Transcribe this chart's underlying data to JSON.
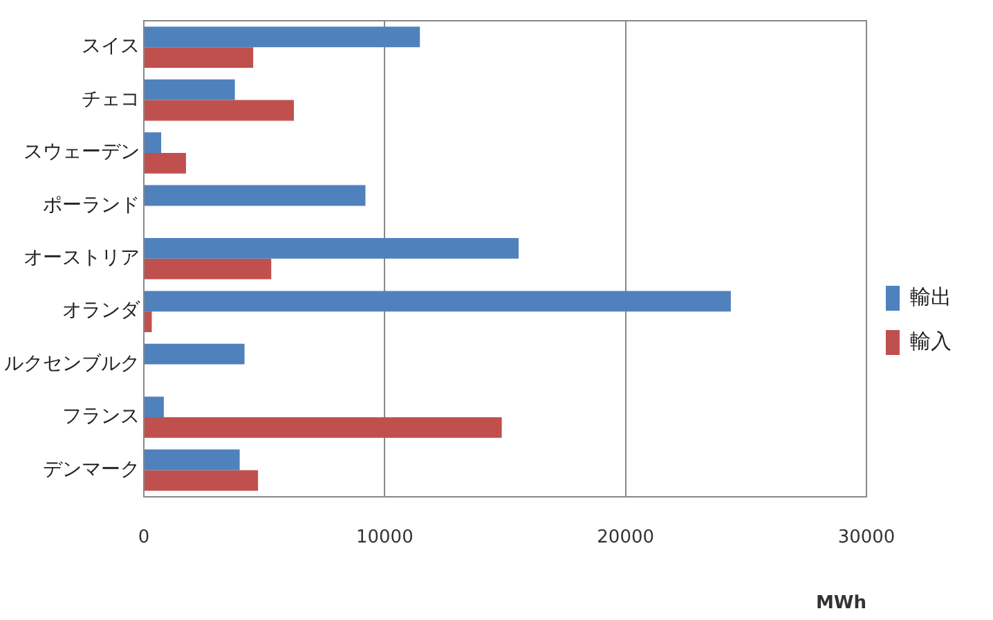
{
  "chart_data": {
    "type": "bar",
    "orientation": "horizontal",
    "xlabel": "MWh",
    "categories": [
      "スイス",
      "チェコ",
      "スウェーデン",
      "ポーランド",
      "オーストリア",
      "オランダ",
      "ルクセンブルク",
      "フランス",
      "デンマーク"
    ],
    "series": [
      {
        "name": "輸出",
        "color": "#4f81bd",
        "values": [
          11460,
          3780,
          720,
          9200,
          15560,
          24370,
          4180,
          830,
          3980
        ]
      },
      {
        "name": "輸入",
        "color": "#c0504d",
        "values": [
          4540,
          6230,
          1750,
          null,
          5290,
          330,
          null,
          14860,
          4740
        ]
      }
    ],
    "xlim": [
      0,
      30000
    ],
    "xticks": [
      0,
      10000,
      20000,
      30000
    ],
    "grid": "x",
    "legend": "right"
  }
}
